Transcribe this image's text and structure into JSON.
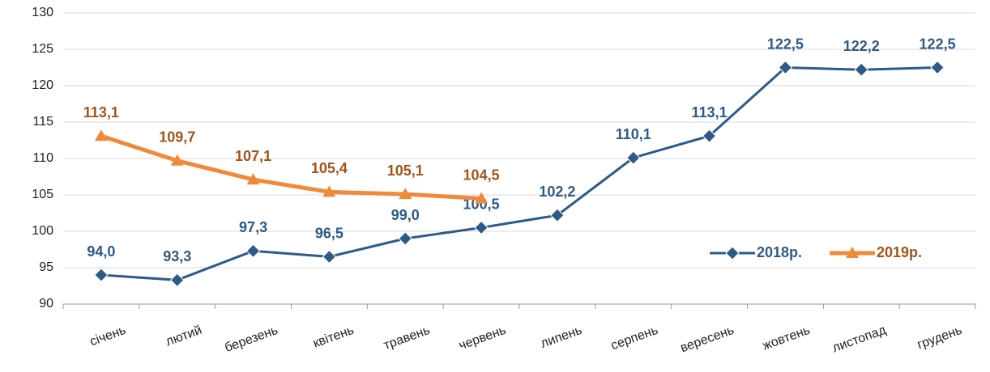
{
  "chart_data": {
    "type": "line",
    "categories": [
      "січень",
      "лютий",
      "березень",
      "квітень",
      "травень",
      "червень",
      "липень",
      "серпень",
      "вересень",
      "жовтень",
      "листопад",
      "грудень"
    ],
    "series": [
      {
        "name": "2018р.",
        "color": "#2e5a88",
        "label_color": "#2e5a88",
        "marker": "diamond",
        "values": [
          94.0,
          93.3,
          97.3,
          96.5,
          99.0,
          100.5,
          102.2,
          110.1,
          113.1,
          122.5,
          122.2,
          122.5
        ],
        "value_labels": [
          "94,0",
          "93,3",
          "97,3",
          "96,5",
          "99,0",
          "100,5",
          "102,2",
          "110,1",
          "113,1",
          "122,5",
          "122,2",
          "122,5"
        ]
      },
      {
        "name": "2019р.",
        "color": "#f08a3a",
        "label_color": "#a35418",
        "marker": "triangle",
        "values": [
          113.1,
          109.7,
          107.1,
          105.4,
          105.1,
          104.5,
          null,
          null,
          null,
          null,
          null,
          null
        ],
        "value_labels": [
          "113,1",
          "109,7",
          "107,1",
          "105,4",
          "105,1",
          "104,5",
          null,
          null,
          null,
          null,
          null,
          null
        ]
      }
    ],
    "ylim": [
      90,
      130
    ],
    "yticks": [
      90,
      95,
      100,
      105,
      110,
      115,
      120,
      125,
      130
    ],
    "grid": true,
    "legend": "right"
  }
}
